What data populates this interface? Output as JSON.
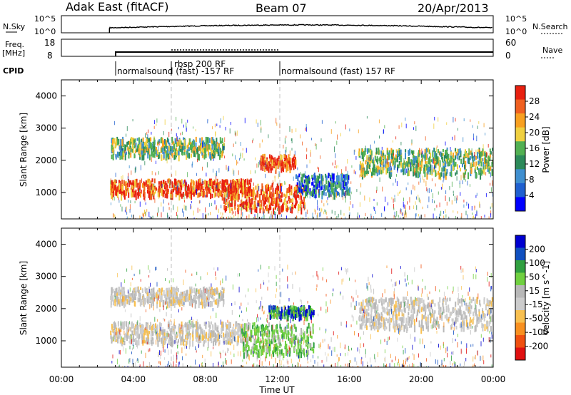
{
  "header": {
    "title": "Adak East (fitACF)",
    "beam": "Beam 07",
    "date": "20/Apr/2013"
  },
  "nsky_panel": {
    "left_label": "N.Sky",
    "left_ticks": [
      "10^5",
      "10^0"
    ],
    "right_ticks": [
      "10^5",
      "10^0"
    ],
    "right_label": "N.Search"
  },
  "freq_panel": {
    "left_label_1": "Freq.",
    "left_label_2": "[MHz]",
    "left_ticks": [
      "18",
      "8"
    ],
    "right_ticks": [
      "60",
      "0"
    ],
    "right_label": "Nave"
  },
  "cpid": {
    "label": "CPID",
    "segments": [
      {
        "text": "normalsound (fast) -157 RF",
        "start_hour": 2.67
      },
      {
        "text": "rbsp 200 RF",
        "start_hour": 6.0
      },
      {
        "text": "normalsound (fast) 157 RF",
        "start_hour": 12.0
      }
    ]
  },
  "colors": {
    "power": [
      "#0000ff",
      "#2060d0",
      "#3f8fd0",
      "#2c8a5a",
      "#52b052",
      "#f0d040",
      "#f8a020",
      "#f06020",
      "#e82010"
    ],
    "velocity": [
      "#e01010",
      "#f05010",
      "#f89020",
      "#f8c050",
      "#cccccc",
      "#b8b8b8",
      "#70d040",
      "#30a040",
      "#1050c0",
      "#0000d0"
    ]
  },
  "chart_data": [
    {
      "type": "heatmap",
      "name": "power",
      "ylabel": "Slant Range [km]",
      "xlabel": "",
      "yticks": [
        "1000",
        "2000",
        "3000",
        "4000"
      ],
      "ylim": [
        180,
        4500
      ],
      "xlim": [
        0,
        24
      ],
      "colorbar_label": "Power [dB]",
      "colorbar_ticks": [
        "4",
        "8",
        "12",
        "16",
        "20",
        "24",
        "28"
      ],
      "colorbar_range": [
        0,
        32
      ],
      "features": [
        {
          "x_start": 2.7,
          "x_end": 10.5,
          "y_center": 1200,
          "thickness": 300,
          "level": "high"
        },
        {
          "x_start": 2.7,
          "x_end": 9.0,
          "y_center": 2450,
          "thickness": 350,
          "level": "medium"
        },
        {
          "x_start": 9.0,
          "x_end": 13.5,
          "y_center": 900,
          "thickness": 500,
          "level": "high"
        },
        {
          "x_start": 11.0,
          "x_end": 13.0,
          "y_center": 2000,
          "thickness": 250,
          "level": "high"
        },
        {
          "x_start": 16.5,
          "x_end": 24.0,
          "y_center": 2000,
          "thickness": 500,
          "level": "medium"
        },
        {
          "x_start": 13.0,
          "x_end": 16.0,
          "y_center": 1300,
          "thickness": 400,
          "level": "low"
        }
      ]
    },
    {
      "type": "heatmap",
      "name": "velocity",
      "ylabel": "Slant Range [km]",
      "xlabel": "Time UT",
      "xticks": [
        "00:00",
        "04:00",
        "08:00",
        "12:00",
        "16:00",
        "20:00",
        "00:00"
      ],
      "yticks": [
        "1000",
        "2000",
        "3000",
        "4000"
      ],
      "ylim": [
        180,
        4500
      ],
      "xlim": [
        0,
        24
      ],
      "colorbar_label": "Velocity [m s^-1]",
      "colorbar_ticks": [
        "200",
        "100",
        "50",
        "15",
        "-15",
        "-50",
        "-100",
        "-200"
      ],
      "features": [
        {
          "x_start": 2.7,
          "x_end": 10.5,
          "y_center": 1300,
          "thickness": 400,
          "level": "ground"
        },
        {
          "x_start": 2.7,
          "x_end": 9.0,
          "y_center": 2450,
          "thickness": 300,
          "level": "ground"
        },
        {
          "x_start": 10.0,
          "x_end": 14.0,
          "y_center": 1100,
          "thickness": 600,
          "level": "pos_mid"
        },
        {
          "x_start": 11.5,
          "x_end": 14.0,
          "y_center": 1950,
          "thickness": 200,
          "level": "pos_high"
        },
        {
          "x_start": 16.5,
          "x_end": 24.0,
          "y_center": 1900,
          "thickness": 600,
          "level": "ground"
        }
      ]
    }
  ]
}
